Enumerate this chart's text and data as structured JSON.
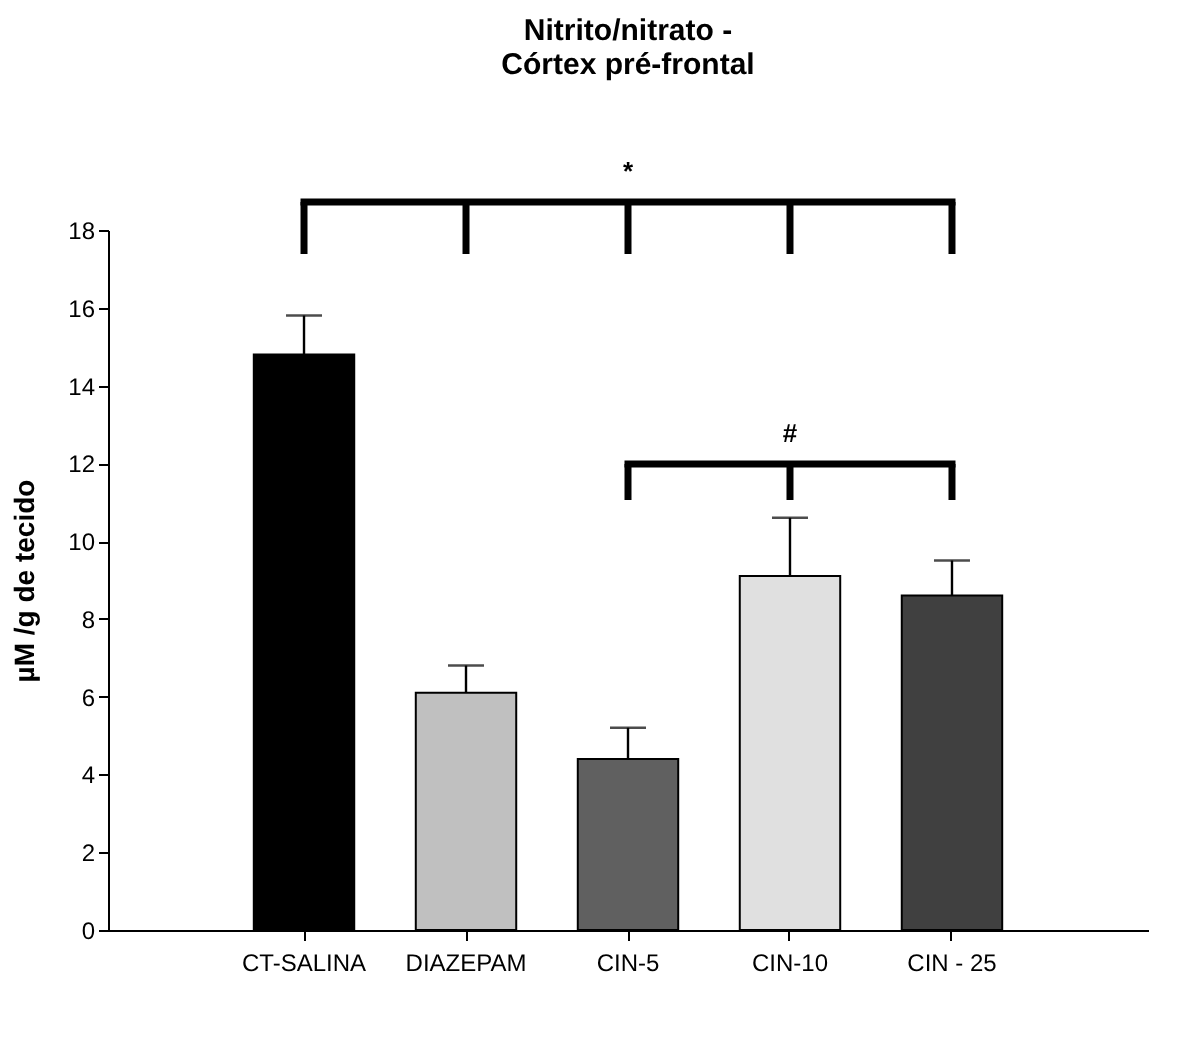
{
  "chart_data": {
    "type": "bar",
    "title": [
      "Nitrito/nitrato -",
      "Córtex pré-frontal"
    ],
    "ylabel": "µM /g de tecido",
    "categories": [
      "CT-SALINA",
      "DIAZEPAM",
      "CIN-5",
      "CIN-10",
      "CIN - 25"
    ],
    "values": [
      14.8,
      6.1,
      4.4,
      9.1,
      8.6
    ],
    "colors": [
      "#000000",
      "#c0c0c0",
      "#606060",
      "#e0e0e0",
      "#404040"
    ],
    "errors": [
      [
        14.8,
        15.8
      ],
      [
        6.1,
        6.8
      ],
      [
        4.4,
        5.2
      ],
      [
        9.1,
        10.6
      ],
      [
        8.6,
        9.5
      ]
    ],
    "ylim": [
      0,
      18
    ],
    "yticks": [
      0,
      2,
      4,
      6,
      8,
      10,
      12,
      14,
      16,
      18
    ],
    "annotations": [
      "*",
      "#"
    ],
    "grid": false,
    "legend": false
  }
}
